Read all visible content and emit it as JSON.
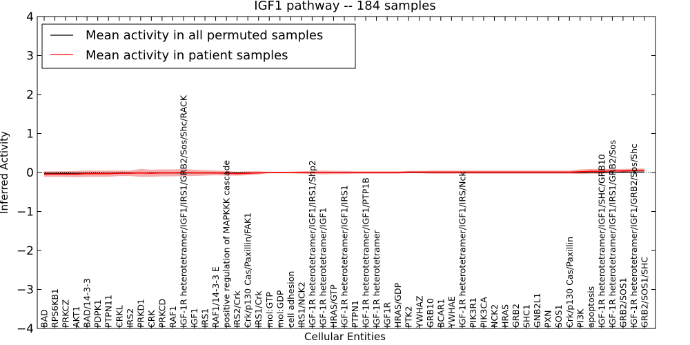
{
  "chart_data": {
    "type": "line",
    "title": "IGF1 pathway -- 184 samples",
    "xlabel": "Cellular Entities",
    "ylabel": "Inferred Activity",
    "ylim": [
      -4,
      4
    ],
    "yticks": [
      -4,
      -3,
      -2,
      -1,
      0,
      1,
      2,
      3,
      4
    ],
    "legend_position": "top-left",
    "categories": [
      "BAD",
      "RPS6KB1",
      "PRKCZ",
      "AKT1",
      "BAD/14-3-3",
      "PDPK1",
      "PTPN11",
      "CRKL",
      "IRS2",
      "PRKD1",
      "CRK",
      "PRKCD",
      "RAF1",
      "IGF-1R heterotetramer/IGF1/IRS1/GRB2/Sos/Shc/RACK",
      "IGF1",
      "IRS1",
      "RAF1/14-3-3 E",
      "positive regulation of MAPKKK cascade",
      "IRS2/Crk",
      "Crk/p130 Cas/Paxillin/FAK1",
      "IRS1/Crk",
      "mol:GTP",
      "mol:GDP",
      "cell adhesion",
      "IRS1/NCK2",
      "IGF-1R heterotetramer/IGF1/IRS1/Shp2",
      "IGF-1R heterotetramer/IGF1",
      "HRAS/GTP",
      "IGF-1R heterotetramer/IGF1/IRS1",
      "PTPN1",
      "IGF-1R heterotetramer/IGF1/PTP1B",
      "IGF-1R heterotetramer",
      "IGF1R",
      "HRAS/GDP",
      "PTK2",
      "YWHAZ",
      "GRB10",
      "BCAR1",
      "YWHAE",
      "IGF-1R heterotetramer/IGF1/IRS/Nck",
      "PIK3R1",
      "PIK3CA",
      "NCK2",
      "HRAS",
      "GRB2",
      "SHC1",
      "GNB2L1",
      "PXN",
      "SOS1",
      "Crk/p130 Cas/Paxillin",
      "PI3K",
      "apoptosis",
      "IGF-1R heterotetramer/IGF1/SHC/GRB10",
      "IGF-1R heterotetramer/IGF1/IRS1/GRB2/Sos",
      "GRB2/SOS1",
      "IGF-1R heterotetramer/IGF1/GRB2/Sos/Shc",
      "GRB2/SOS1/SHC"
    ],
    "series": [
      {
        "name": "Mean activity in all permuted samples",
        "color": "#000000",
        "values": [
          -0.02,
          -0.02,
          -0.02,
          -0.02,
          -0.02,
          -0.02,
          -0.02,
          -0.01,
          -0.01,
          -0.01,
          -0.01,
          -0.01,
          -0.01,
          -0.01,
          -0.01,
          -0.01,
          -0.01,
          -0.01,
          -0.01,
          -0.01,
          -0.01,
          0.0,
          0.0,
          0.0,
          0.0,
          0.0,
          0.0,
          0.0,
          0.0,
          0.0,
          0.0,
          0.0,
          0.0,
          0.0,
          0.0,
          0.0,
          0.0,
          0.0,
          0.0,
          0.0,
          0.0,
          0.0,
          0.0,
          0.0,
          0.0,
          0.0,
          0.0,
          0.0,
          0.0,
          0.0,
          0.0,
          0.0,
          0.0,
          0.0,
          0.01,
          0.01,
          0.01
        ]
      },
      {
        "name": "Mean activity in patient samples",
        "color": "#ff0000",
        "values": [
          -0.04,
          -0.04,
          -0.04,
          -0.04,
          -0.03,
          -0.03,
          -0.03,
          -0.02,
          -0.02,
          -0.01,
          -0.02,
          -0.01,
          -0.01,
          0.0,
          -0.01,
          -0.01,
          -0.01,
          -0.02,
          -0.03,
          -0.02,
          -0.01,
          0.0,
          0.0,
          0.0,
          0.0,
          0.0,
          0.0,
          0.0,
          0.0,
          0.0,
          0.0,
          0.0,
          0.0,
          0.0,
          0.01,
          0.01,
          0.01,
          0.01,
          0.01,
          0.01,
          0.01,
          0.01,
          0.01,
          0.01,
          0.01,
          0.01,
          0.01,
          0.01,
          0.01,
          0.01,
          0.02,
          0.03,
          0.03,
          0.04,
          0.04,
          0.05,
          0.05
        ],
        "band_spread": [
          0.07,
          0.07,
          0.07,
          0.08,
          0.08,
          0.08,
          0.08,
          0.07,
          0.07,
          0.1,
          0.09,
          0.09,
          0.09,
          0.09,
          0.08,
          0.07,
          0.06,
          0.06,
          0.05,
          0.05,
          0.04,
          0.02,
          0.02,
          0.02,
          0.03,
          0.04,
          0.05,
          0.04,
          0.04,
          0.03,
          0.03,
          0.03,
          0.03,
          0.03,
          0.03,
          0.03,
          0.04,
          0.04,
          0.04,
          0.04,
          0.04,
          0.04,
          0.04,
          0.04,
          0.04,
          0.04,
          0.04,
          0.04,
          0.04,
          0.04,
          0.06,
          0.06,
          0.06,
          0.05,
          0.05,
          0.05,
          0.05
        ]
      }
    ]
  }
}
